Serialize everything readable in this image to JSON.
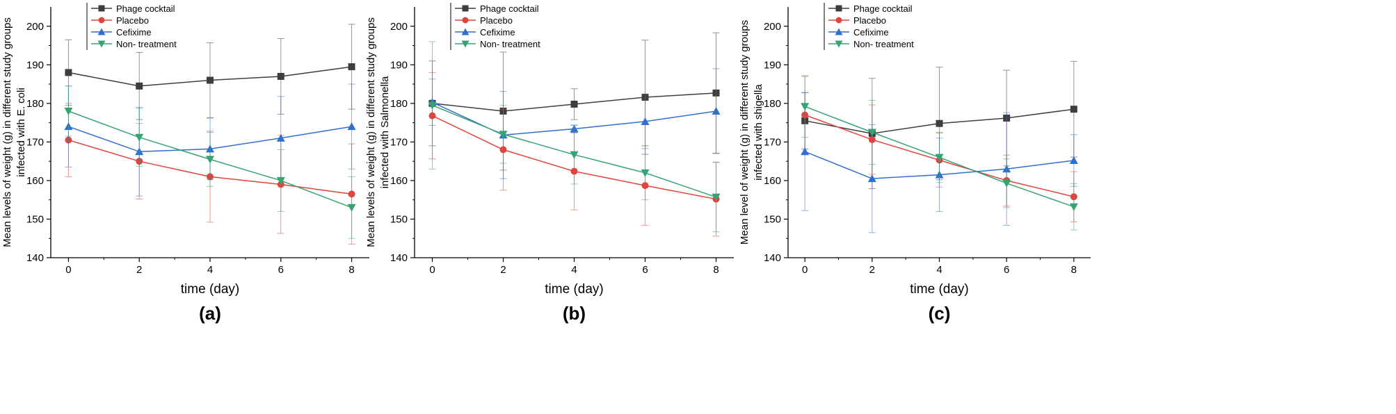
{
  "chart_data": [
    {
      "type": "line",
      "panel_label": "(a)",
      "xlabel": "time (day)",
      "ylabel_lines": [
        "Mean levels of weight (g) in different study groups",
        "infected with E. coli"
      ],
      "x": [
        0,
        2,
        4,
        6,
        8
      ],
      "xticks": [
        "0",
        "2",
        "4",
        "6",
        "8"
      ],
      "xlim": [
        -0.5,
        8.5
      ],
      "ylim": [
        140,
        205
      ],
      "yticks": [
        140,
        150,
        160,
        170,
        180,
        190,
        200
      ],
      "legend_position": "top-left",
      "series": [
        {
          "name": "Phage cocktail",
          "color": "#3d3d3d",
          "marker": "square",
          "values": [
            188,
            184.5,
            186,
            187,
            189.5
          ],
          "errors": [
            8.5,
            8.7,
            9.7,
            9.8,
            11
          ]
        },
        {
          "name": "Placebo",
          "color": "#e0443c",
          "marker": "circle",
          "values": [
            170.5,
            165,
            161,
            159,
            156.5
          ],
          "errors": [
            9.5,
            9.8,
            11.8,
            12.7,
            13
          ]
        },
        {
          "name": "Cefixime",
          "color": "#2f6fd0",
          "marker": "triangle-up",
          "values": [
            174,
            167.5,
            168.2,
            171,
            174
          ],
          "errors": [
            10.5,
            11.5,
            8,
            10.8,
            11
          ]
        },
        {
          "name": "Non- treatment",
          "color": "#35a372",
          "marker": "triangle-down",
          "values": [
            178,
            171.2,
            165.5,
            160,
            153
          ],
          "errors": [
            6.5,
            7.5,
            7,
            8,
            8
          ]
        }
      ]
    },
    {
      "type": "line",
      "panel_label": "(b)",
      "xlabel": "time (day)",
      "ylabel_lines": [
        "Mean levels of weight (g) in different study groups",
        "infected with Salmonella"
      ],
      "x": [
        0,
        2,
        4,
        6,
        8
      ],
      "xticks": [
        "0",
        "2",
        "4",
        "6",
        "8"
      ],
      "xlim": [
        -0.5,
        8.5
      ],
      "ylim": [
        140,
        205
      ],
      "yticks": [
        140,
        150,
        160,
        170,
        180,
        190,
        200
      ],
      "legend_position": "top-left",
      "series": [
        {
          "name": "Phage cocktail",
          "color": "#3d3d3d",
          "marker": "square",
          "values": [
            180,
            178,
            179.8,
            181.6,
            182.7
          ],
          "errors": [
            11,
            15.3,
            4,
            14.8,
            15.6
          ]
        },
        {
          "name": "Placebo",
          "color": "#e0443c",
          "marker": "circle",
          "values": [
            176.8,
            168,
            162.4,
            158.7,
            155.2
          ],
          "errors": [
            11.2,
            10.5,
            10,
            10.3,
            9.6
          ]
        },
        {
          "name": "Cefixime",
          "color": "#2f6fd0",
          "marker": "triangle-up",
          "values": [
            180.3,
            171.8,
            173.4,
            175.3,
            178
          ],
          "errors": [
            6,
            11.3,
            1,
            7,
            11
          ]
        },
        {
          "name": "Non- treatment",
          "color": "#35a372",
          "marker": "triangle-down",
          "values": [
            179.5,
            172,
            166.7,
            162,
            155.7
          ],
          "errors": [
            16.5,
            7.5,
            7.6,
            7,
            9
          ]
        }
      ]
    },
    {
      "type": "line",
      "panel_label": "(c)",
      "xlabel": "time (day)",
      "ylabel_lines": [
        "Mean level of weight (g) in different study groups",
        "infected with shigella"
      ],
      "x": [
        0,
        2,
        4,
        6,
        8
      ],
      "xticks": [
        "0",
        "2",
        "4",
        "6",
        "8"
      ],
      "xlim": [
        -0.5,
        8.5
      ],
      "ylim": [
        140,
        205
      ],
      "yticks": [
        140,
        150,
        160,
        170,
        180,
        190,
        200
      ],
      "legend_position": "top-left",
      "series": [
        {
          "name": "Phage cocktail",
          "color": "#3d3d3d",
          "marker": "square",
          "values": [
            175.5,
            172.2,
            174.8,
            176.2,
            178.5
          ],
          "errors": [
            7.3,
            14.3,
            14.6,
            12.4,
            12.4
          ]
        },
        {
          "name": "Placebo",
          "color": "#e0443c",
          "marker": "circle",
          "values": [
            177,
            170.6,
            165.3,
            160,
            155.8
          ],
          "errors": [
            10,
            9,
            7,
            6.6,
            6.5
          ]
        },
        {
          "name": "Cefixime",
          "color": "#2f6fd0",
          "marker": "triangle-up",
          "values": [
            167.5,
            160.5,
            161.5,
            163,
            165.2
          ],
          "errors": [
            15.3,
            14,
            9.5,
            14.6,
            6.7
          ]
        },
        {
          "name": "Non- treatment",
          "color": "#35a372",
          "marker": "triangle-down",
          "values": [
            179.2,
            172.5,
            166,
            159.3,
            153.2
          ],
          "errors": [
            8,
            8.3,
            6.5,
            6.3,
            6
          ]
        }
      ]
    }
  ]
}
